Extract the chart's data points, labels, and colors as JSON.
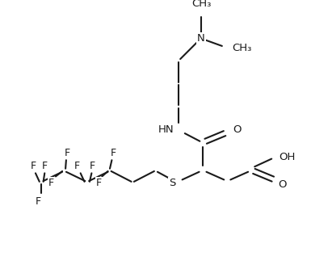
{
  "bg": "#ffffff",
  "lc": "#1a1a1a",
  "tc": "#1a1a1a",
  "figsize": [
    3.85,
    3.33
  ],
  "dpi": 100,
  "xlim": [
    -0.5,
    4.2
  ],
  "ylim": [
    -0.3,
    3.6
  ],
  "lw": 1.5,
  "fs": 9.5
}
